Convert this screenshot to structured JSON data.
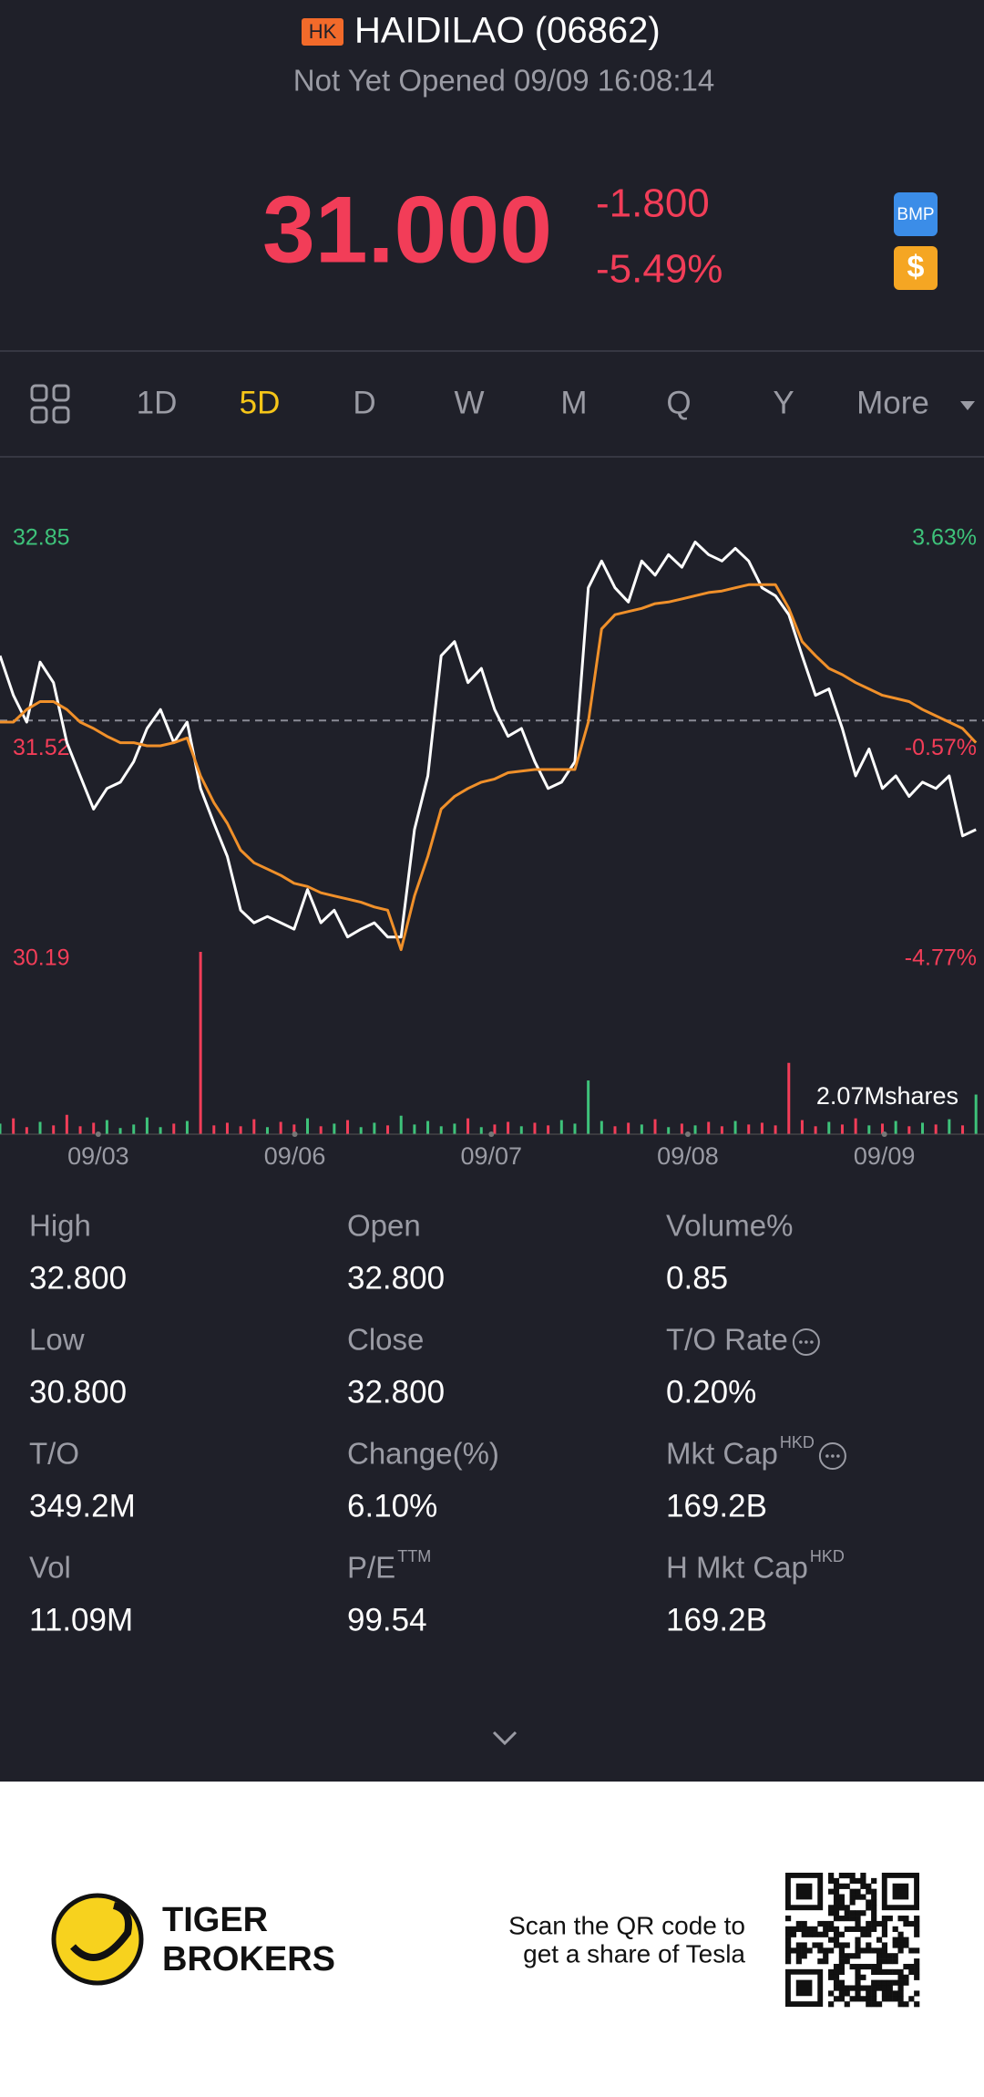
{
  "header": {
    "exchange_badge": "HK",
    "title": "HAIDILAO (06862)",
    "status": "Not Yet Opened 09/09 16:08:14",
    "price": "31.000",
    "change": "-1.800",
    "change_pct": "-5.49%",
    "badges": [
      "BMP",
      "$"
    ]
  },
  "tabs": {
    "items": [
      "1D",
      "5D",
      "D",
      "W",
      "M",
      "Q",
      "Y",
      "More"
    ],
    "active": 1
  },
  "chart_data": {
    "type": "line",
    "x": [
      0,
      1,
      2,
      3,
      4,
      5,
      6,
      7,
      8,
      9,
      10,
      11,
      12,
      13,
      14,
      15,
      16,
      17,
      18,
      19,
      20,
      21,
      22,
      23,
      24,
      25,
      26,
      27,
      28,
      29,
      30,
      31,
      32,
      33,
      34,
      35,
      36,
      37,
      38,
      39,
      40,
      41,
      42,
      43,
      44,
      45,
      46,
      47,
      48,
      49,
      50,
      51,
      52,
      53,
      54,
      55,
      56,
      57,
      58,
      59,
      60,
      61,
      62,
      63,
      64,
      65,
      66,
      67,
      68,
      69,
      70,
      71,
      72,
      73
    ],
    "xlim": [
      0,
      73.6
    ],
    "xticks": [
      {
        "value": 7.35,
        "label": "09/03"
      },
      {
        "value": 22.05,
        "label": "09/06"
      },
      {
        "value": 36.75,
        "label": "09/07"
      },
      {
        "value": 51.45,
        "label": "09/08"
      },
      {
        "value": 66.15,
        "label": "09/09"
      }
    ],
    "series": [
      {
        "color": "#ffffff",
        "values": [
          32.11,
          31.86,
          31.69,
          32.07,
          31.94,
          31.56,
          31.35,
          31.14,
          31.27,
          31.31,
          31.44,
          31.65,
          31.77,
          31.56,
          31.69,
          31.27,
          31.05,
          30.84,
          30.5,
          30.42,
          30.46,
          30.42,
          30.38,
          30.63,
          30.42,
          30.5,
          30.33,
          30.38,
          30.42,
          30.33,
          30.33,
          31.01,
          31.35,
          32.11,
          32.2,
          31.94,
          32.03,
          31.77,
          31.6,
          31.65,
          31.44,
          31.27,
          31.31,
          31.44,
          32.54,
          32.71,
          32.54,
          32.45,
          32.71,
          32.62,
          32.75,
          32.67,
          32.83,
          32.75,
          32.71,
          32.79,
          32.71,
          32.54,
          32.49,
          32.37,
          32.11,
          31.86,
          31.9,
          31.65,
          31.35,
          31.52,
          31.27,
          31.35,
          31.22,
          31.31,
          31.27,
          31.35,
          30.97,
          31.01
        ]
      },
      {
        "color": "#f0902a",
        "values": [
          31.69,
          31.69,
          31.77,
          31.82,
          31.82,
          31.77,
          31.69,
          31.65,
          31.6,
          31.56,
          31.56,
          31.54,
          31.54,
          31.56,
          31.59,
          31.35,
          31.18,
          31.05,
          30.88,
          30.8,
          30.76,
          30.72,
          30.67,
          30.65,
          30.61,
          30.59,
          30.57,
          30.55,
          30.52,
          30.5,
          30.25,
          30.59,
          30.84,
          31.14,
          31.22,
          31.27,
          31.31,
          31.33,
          31.37,
          31.38,
          31.39,
          31.39,
          31.39,
          31.39,
          31.69,
          32.28,
          32.37,
          32.39,
          32.41,
          32.44,
          32.45,
          32.47,
          32.49,
          32.51,
          32.52,
          32.54,
          32.56,
          32.56,
          32.56,
          32.41,
          32.2,
          32.11,
          32.03,
          31.99,
          31.94,
          31.9,
          31.86,
          31.84,
          31.82,
          31.77,
          31.73,
          31.69,
          31.65,
          31.56
        ]
      }
    ],
    "ylim": [
      30.19,
      32.85
    ],
    "yticks": [
      32.85,
      31.52,
      30.19
    ],
    "y2lim": [
      -4.77,
      3.63
    ],
    "y2ticks": [
      {
        "value": 3.63,
        "label": "3.63%"
      },
      {
        "value": -0.57,
        "label": "-0.57%"
      },
      {
        "value": -4.77,
        "label": "-4.77%"
      }
    ],
    "reference_line": 31.7,
    "up_color": "#3ec27a",
    "down_color": "#f23d58",
    "volume": {
      "values": [
        0.12,
        0.18,
        0.08,
        0.14,
        0.1,
        0.22,
        0.09,
        0.13,
        0.16,
        0.07,
        0.11,
        0.19,
        0.08,
        0.12,
        0.15,
        2.07,
        0.1,
        0.13,
        0.09,
        0.17,
        0.08,
        0.14,
        0.11,
        0.18,
        0.09,
        0.12,
        0.16,
        0.08,
        0.13,
        0.1,
        0.21,
        0.11,
        0.15,
        0.09,
        0.12,
        0.18,
        0.08,
        0.11,
        0.14,
        0.09,
        0.13,
        0.1,
        0.16,
        0.12,
        0.61,
        0.15,
        0.09,
        0.13,
        0.11,
        0.17,
        0.08,
        0.12,
        0.1,
        0.14,
        0.09,
        0.15,
        0.11,
        0.13,
        0.1,
        0.81,
        0.16,
        0.09,
        0.14,
        0.11,
        0.18,
        0.1,
        0.12,
        0.15,
        0.09,
        0.13,
        0.11,
        0.17,
        0.1,
        0.45
      ],
      "ylim": [
        0,
        2.07
      ],
      "yticks": [
        {
          "value": 2.07,
          "label": "2.07Mshares"
        }
      ]
    }
  },
  "stats": [
    {
      "label": "High",
      "value": "32.800"
    },
    {
      "label": "Open",
      "value": "32.800"
    },
    {
      "label": "Volume%",
      "value": "0.85"
    },
    {
      "label": "Low",
      "value": "30.800"
    },
    {
      "label": "Close",
      "value": "32.800"
    },
    {
      "label": "T/O Rate",
      "value": "0.20%"
    },
    {
      "label": "T/O",
      "value": "349.2M"
    },
    {
      "label": "Change(%)",
      "value": "6.10%"
    },
    {
      "label": "Mkt Cap",
      "sup": "HKD",
      "value": "169.2B"
    },
    {
      "label": "Vol",
      "value": "11.09M"
    },
    {
      "label": "P/E",
      "sup": "TTM",
      "value": "99.54"
    },
    {
      "label": "H Mkt Cap",
      "sup": "HKD",
      "value": "169.2B"
    }
  ],
  "footer": {
    "brand": [
      "TIGER",
      "BROKERS"
    ],
    "promo": [
      "Scan the QR code to",
      "get a share of Tesla"
    ]
  }
}
